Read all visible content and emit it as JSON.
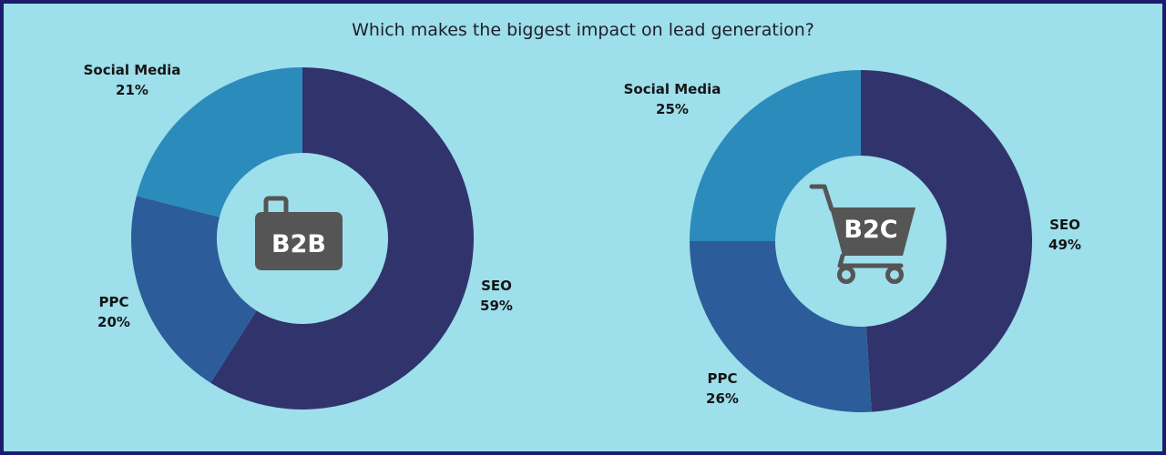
{
  "title": "Which makes the biggest impact on lead generation?",
  "colors": {
    "background": "#9ddfea",
    "border": "#1c1c6e",
    "seo": "#31336c",
    "ppc": "#2c5d9a",
    "social": "#2b8bbb",
    "icon": "#555555"
  },
  "chart_data": [
    {
      "type": "pie",
      "donut": true,
      "center_label": "B2B",
      "center_icon": "briefcase-icon",
      "slices": [
        {
          "label": "SEO",
          "value": 59,
          "value_text": "59%"
        },
        {
          "label": "PPC",
          "value": 20,
          "value_text": "20%"
        },
        {
          "label": "Social Media",
          "value": 21,
          "value_text": "21%"
        }
      ]
    },
    {
      "type": "pie",
      "donut": true,
      "center_label": "B2C",
      "center_icon": "shopping-cart-icon",
      "slices": [
        {
          "label": "SEO",
          "value": 49,
          "value_text": "49%"
        },
        {
          "label": "PPC",
          "value": 26,
          "value_text": "26%"
        },
        {
          "label": "Social Media",
          "value": 25,
          "value_text": "25%"
        }
      ]
    }
  ]
}
